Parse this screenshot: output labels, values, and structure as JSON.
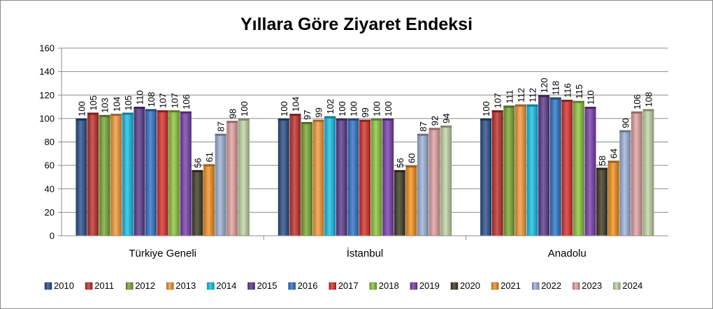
{
  "chart_data": {
    "type": "bar",
    "title": "Yıllara Göre Ziyaret Endeksi",
    "categories": [
      "Türkiye Geneli",
      "İstanbul",
      "Anadolu"
    ],
    "ylim": [
      0,
      160
    ],
    "yticks": [
      0,
      20,
      40,
      60,
      80,
      100,
      120,
      140,
      160
    ],
    "grid": true,
    "legend": "bottom",
    "series": [
      {
        "name": "2010",
        "color": "#2a4f8a",
        "values": [
          100,
          100,
          100
        ]
      },
      {
        "name": "2011",
        "color": "#c0302a",
        "values": [
          105,
          104,
          107
        ]
      },
      {
        "name": "2012",
        "color": "#7aa834",
        "values": [
          103,
          97,
          111
        ]
      },
      {
        "name": "2013",
        "color": "#f49a3c",
        "values": [
          104,
          99,
          112
        ]
      },
      {
        "name": "2014",
        "color": "#16c0ea",
        "values": [
          105,
          102,
          112
        ]
      },
      {
        "name": "2015",
        "color": "#5c3b8c",
        "values": [
          110,
          100,
          120
        ]
      },
      {
        "name": "2016",
        "color": "#2f74c8",
        "values": [
          108,
          100,
          118
        ]
      },
      {
        "name": "2017",
        "color": "#d8302c",
        "values": [
          107,
          99,
          116
        ]
      },
      {
        "name": "2018",
        "color": "#8ec53e",
        "values": [
          107,
          100,
          115
        ]
      },
      {
        "name": "2019",
        "color": "#7a3fae",
        "values": [
          106,
          100,
          110
        ]
      },
      {
        "name": "2020",
        "color": "#403a24",
        "values": [
          56,
          56,
          58
        ]
      },
      {
        "name": "2021",
        "color": "#f5921e",
        "values": [
          61,
          60,
          64
        ]
      },
      {
        "name": "2022",
        "color": "#9fb4d8",
        "values": [
          87,
          87,
          90
        ]
      },
      {
        "name": "2023",
        "color": "#e3a3a3",
        "values": [
          98,
          92,
          106
        ]
      },
      {
        "name": "2024",
        "color": "#c4d6a6",
        "values": [
          100,
          94,
          108
        ]
      }
    ]
  }
}
